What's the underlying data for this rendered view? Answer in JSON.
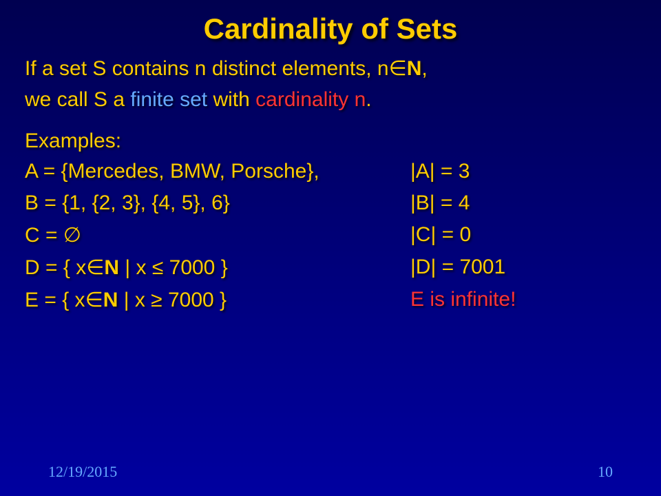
{
  "title": "Cardinality of Sets",
  "definition": {
    "part1": "If a set S contains n distinct elements, n",
    "symbol_in": "∈",
    "natN": "N",
    "comma": ",",
    "part2a": "we call S a ",
    "finite_set": "finite set",
    "with_text": " with ",
    "cardinality_n": "cardinality n",
    "period": "."
  },
  "examples_label": "Examples:",
  "rows": [
    {
      "left": "A = {Mercedes, BMW, Porsche},",
      "right": "|A| = 3",
      "right_class": ""
    },
    {
      "left": "B = {1, {2, 3}, {4, 5}, 6}",
      "right": "|B| = 4",
      "right_class": ""
    },
    {
      "left": "C = ∅",
      "right": "|C| = 0",
      "right_class": ""
    },
    {
      "left_prefix": "D = { x",
      "left_in": "∈",
      "left_N": "N",
      "left_suffix": " | x ≤ 7000 }",
      "right": "|D| = 7001",
      "right_class": ""
    },
    {
      "left_prefix": "E = { x",
      "left_in": "∈",
      "left_N": "N",
      "left_suffix": " | x ≥ 7000 }",
      "right": "E is infinite!",
      "right_class": "red"
    }
  ],
  "footer": {
    "date": "12/19/2015",
    "page": "10"
  },
  "colors": {
    "gold": "#ffcc00",
    "blue": "#66aaff",
    "red": "#ff3333",
    "bg_top": "#000050",
    "bg_bottom": "#0000a0"
  }
}
